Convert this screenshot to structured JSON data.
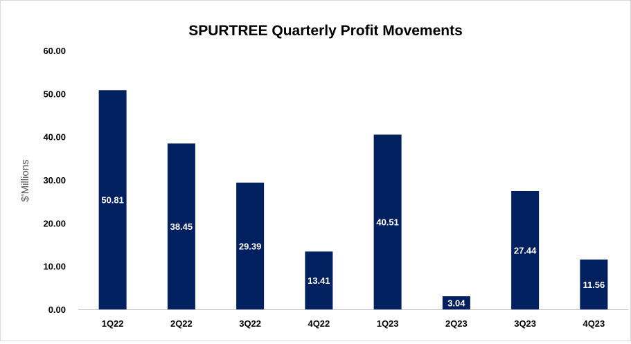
{
  "chart_data": {
    "type": "bar",
    "title": "SPURTREE Quarterly Profit Movements",
    "xlabel": "",
    "ylabel": "$'Millions",
    "categories": [
      "1Q22",
      "2Q22",
      "3Q22",
      "4Q22",
      "1Q23",
      "2Q23",
      "3Q23",
      "4Q23"
    ],
    "values": [
      50.81,
      38.45,
      29.39,
      13.41,
      40.51,
      3.04,
      27.44,
      11.56
    ],
    "data_labels": [
      "50.81",
      "38.45",
      "29.39",
      "13.41",
      "40.51",
      "3.04",
      "27.44",
      "11.56"
    ],
    "ylim": [
      0,
      60
    ],
    "yticks": [
      0,
      10,
      20,
      30,
      40,
      50,
      60
    ],
    "ytick_labels": [
      "0.00",
      "10.00",
      "20.00",
      "30.00",
      "40.00",
      "50.00",
      "60.00"
    ],
    "grid": false,
    "bar_color": "#002060",
    "axis_color": "#bfbfbf"
  }
}
